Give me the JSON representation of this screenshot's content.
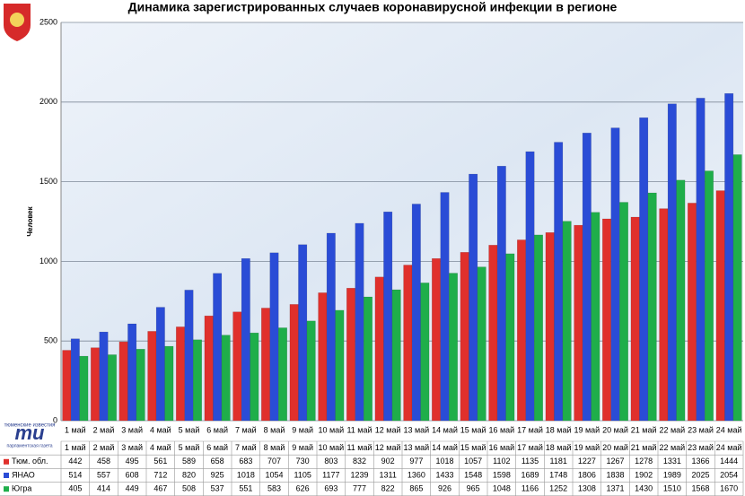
{
  "chart_data": {
    "type": "bar",
    "title": "Динамика зарегистрированных случаев коронавирусной инфекции  в регионе",
    "y_label": "Человек",
    "logo": {
      "mark": "ти",
      "top": "тюменские известия",
      "bottom": "парламентская газета"
    },
    "categories": [
      "1 май",
      "2 май",
      "3 май",
      "4 май",
      "5 май",
      "6 май",
      "7 май",
      "8 май",
      "9 май",
      "10 май",
      "11 май",
      "12 май",
      "13 май",
      "14 май",
      "15 май",
      "16 май",
      "17 май",
      "18 май",
      "19 май",
      "20 май",
      "21 май",
      "22 май",
      "23 май",
      "24 май"
    ],
    "series": [
      {
        "name": "Тюм. обл.",
        "color": "#e0302c",
        "values": [
          442,
          458,
          495,
          561,
          589,
          658,
          683,
          707,
          730,
          803,
          832,
          902,
          977,
          1018,
          1057,
          1102,
          1135,
          1181,
          1227,
          1267,
          1278,
          1331,
          1366,
          1444
        ]
      },
      {
        "name": "ЯНАО",
        "color": "#2a4cd6",
        "values": [
          514,
          557,
          608,
          712,
          820,
          925,
          1018,
          1054,
          1105,
          1177,
          1239,
          1311,
          1360,
          1433,
          1548,
          1598,
          1689,
          1748,
          1806,
          1838,
          1902,
          1989,
          2025,
          2054
        ]
      },
      {
        "name": "Югра",
        "color": "#1fae4a",
        "values": [
          405,
          414,
          449,
          467,
          508,
          537,
          551,
          583,
          626,
          693,
          777,
          822,
          865,
          926,
          965,
          1048,
          1166,
          1252,
          1308,
          1371,
          1430,
          1510,
          1568,
          1670
        ]
      }
    ],
    "ylim": [
      0,
      2500
    ],
    "yticks": [
      0,
      500,
      1000,
      1500,
      2000,
      2500
    ],
    "grid": true
  }
}
